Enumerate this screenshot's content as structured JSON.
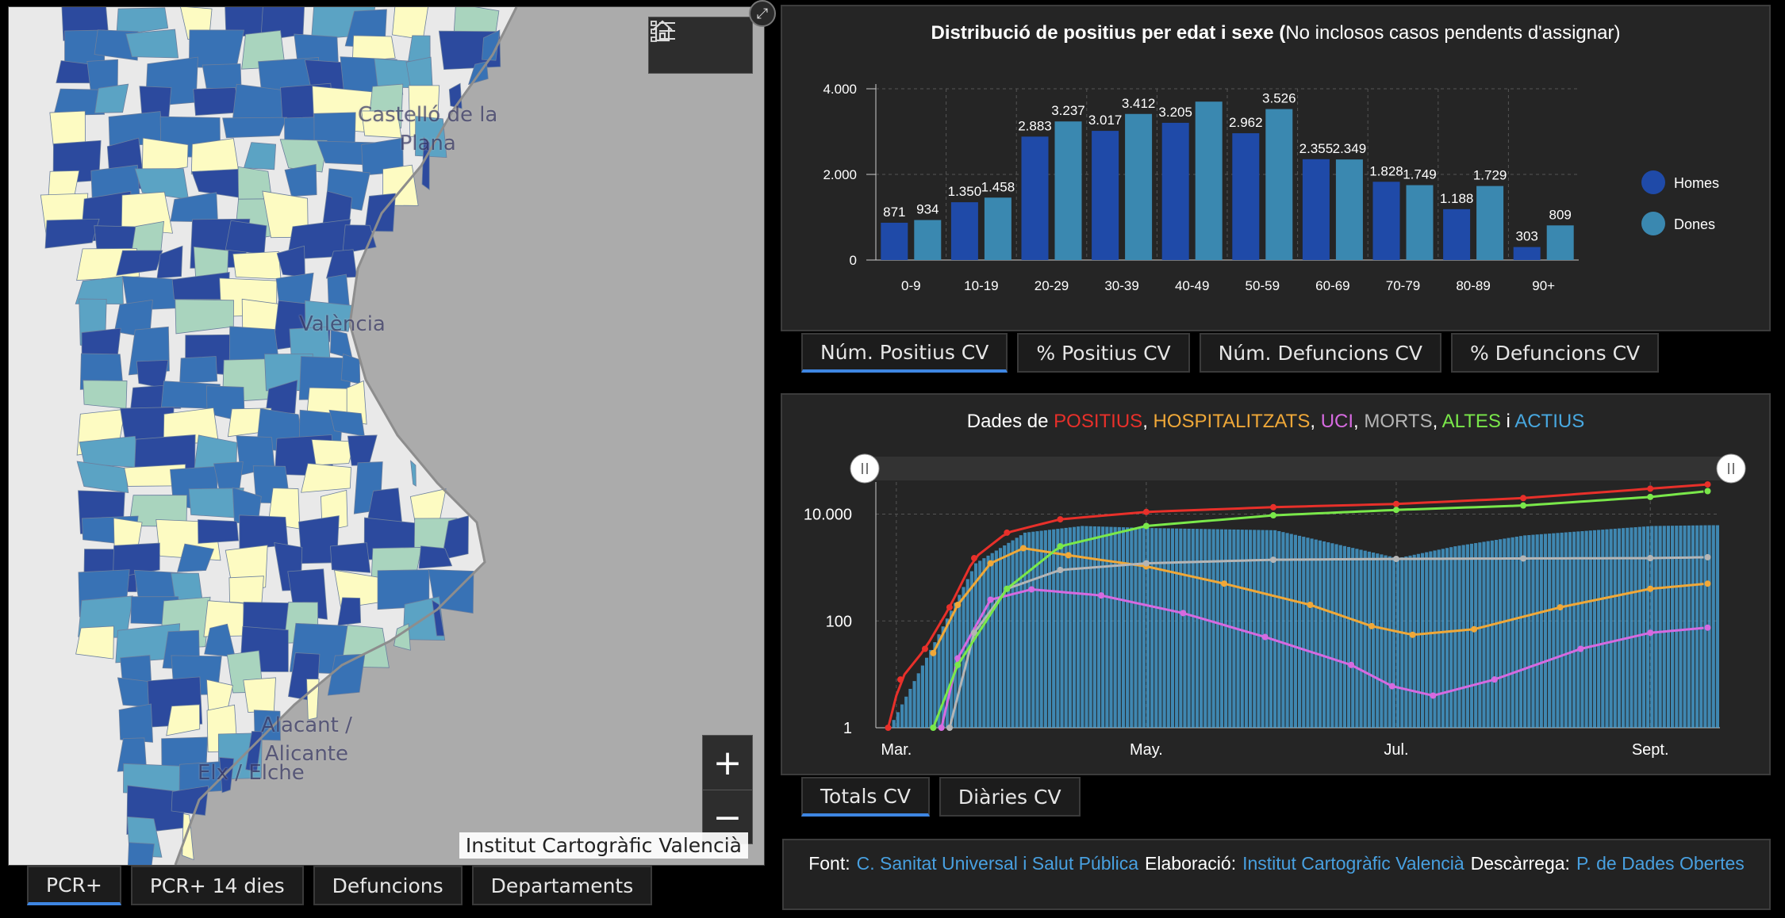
{
  "map": {
    "labels": {
      "castello_1": "Castelló de la",
      "castello_2": "Plana",
      "valencia": "València",
      "alacant_1": "Alacant /",
      "alacant_2": "Alicante",
      "elx": "Elx / Elche"
    },
    "attribution": "Institut Cartogràfic Valencià",
    "zoom_in": "+",
    "zoom_out": "−",
    "icons": [
      "home-icon",
      "legend-list-icon",
      "expand-icon"
    ],
    "colors": {
      "sea": "#ababab",
      "land": "#e9e9e9",
      "dark": "#2c4a9e",
      "mid": "#3872b5",
      "teal": "#5ba3c4",
      "light": "#a9d4be",
      "pale": "#fdfbc2"
    }
  },
  "map_tabs": [
    "PCR+",
    "PCR+ 14 dies",
    "Defuncions",
    "Departaments"
  ],
  "age_chart": {
    "title_bold": "Distribució de positius per edat i sexe (",
    "title_normal": "No inclosos casos pendents d'assignar)",
    "tabs": [
      "Núm. Positius CV",
      "% Positius CV",
      "Núm. Defuncions CV",
      "% Defuncions CV"
    ],
    "legend": [
      {
        "label": "Homes",
        "color": "#1f4aa8"
      },
      {
        "label": "Dones",
        "color": "#3a88b0"
      }
    ]
  },
  "timeline": {
    "title_prefix": "Dades de ",
    "title_parts": [
      {
        "text": "POSITIUS",
        "color": "#e8302a"
      },
      {
        "text": ", ",
        "color": "#ffffff"
      },
      {
        "text": "HOSPITALITZATS",
        "color": "#f0a838"
      },
      {
        "text": ", ",
        "color": "#ffffff"
      },
      {
        "text": "UCI",
        "color": "#d66ae0"
      },
      {
        "text": ", ",
        "color": "#ffffff"
      },
      {
        "text": "MORTS",
        "color": "#b5b5b5"
      },
      {
        "text": ", ",
        "color": "#ffffff"
      },
      {
        "text": "ALTES",
        "color": "#7ae84a"
      },
      {
        "text": " i ",
        "color": "#ffffff"
      },
      {
        "text": "ACTIUS",
        "color": "#48a8e0"
      }
    ],
    "tabs": [
      "Totals CV",
      "Diàries CV"
    ]
  },
  "footer": {
    "font_label": "Font:",
    "font_link": "C. Sanitat Universal i Salut Pública",
    "elab_label": "Elaboració:",
    "elab_link": "Institut Cartogràfic Valencià",
    "desc_label": "Descàrrega:",
    "desc_link": "P. de Dades Obertes"
  },
  "chart_data": [
    {
      "type": "bar",
      "categories": [
        "0-9",
        "10-19",
        "20-29",
        "30-39",
        "40-49",
        "50-59",
        "60-69",
        "70-79",
        "80-89",
        "90+"
      ],
      "series": [
        {
          "name": "Homes",
          "values": [
            871,
            1350,
            2883,
            3017,
            3205,
            2962,
            2355,
            1828,
            1188,
            303
          ]
        },
        {
          "name": "Dones",
          "values": [
            934,
            1458,
            3237,
            3412,
            3700,
            3526,
            2349,
            1749,
            1729,
            809
          ]
        }
      ],
      "data_labels": {
        "Homes": [
          "871",
          "1.350",
          "2.883",
          "3.017",
          "3.205",
          "2.962",
          "2.355",
          "1.828",
          "1.188",
          "303"
        ],
        "Dones": [
          "934",
          "1.458",
          "3.237",
          "3.412",
          "",
          "3.526",
          "2.349",
          "1.749",
          "1.729",
          "809"
        ]
      },
      "yticks": [
        {
          "v": 0,
          "label": "0"
        },
        {
          "v": 2000,
          "label": "2.000"
        },
        {
          "v": 4000,
          "label": "4.000"
        }
      ],
      "ylim": [
        0,
        4000
      ],
      "grid": true,
      "legend_position": "right"
    },
    {
      "type": "line",
      "scale": "log",
      "ylim": [
        1,
        40000
      ],
      "yticks": [
        {
          "v": 1,
          "label": "1"
        },
        {
          "v": 100,
          "label": "100"
        },
        {
          "v": 10000,
          "label": "10.000"
        }
      ],
      "xlim": [
        "2020-02-25",
        "2020-09-18"
      ],
      "xticks": [
        {
          "date": "2020-03-01",
          "label": "Mar."
        },
        {
          "date": "2020-05-01",
          "label": "May."
        },
        {
          "date": "2020-07-01",
          "label": "Jul."
        },
        {
          "date": "2020-09-01",
          "label": "Sept."
        }
      ],
      "grid": true,
      "series": [
        {
          "name": "POSITIUS",
          "color": "#e8302a",
          "points": [
            [
              "2020-02-28",
              1
            ],
            [
              "2020-03-02",
              8
            ],
            [
              "2020-03-08",
              30
            ],
            [
              "2020-03-14",
              180
            ],
            [
              "2020-03-20",
              1500
            ],
            [
              "2020-03-28",
              4500
            ],
            [
              "2020-04-10",
              8000
            ],
            [
              "2020-05-01",
              11000
            ],
            [
              "2020-06-01",
              13500
            ],
            [
              "2020-07-01",
              15500
            ],
            [
              "2020-08-01",
              20000
            ],
            [
              "2020-09-01",
              30000
            ],
            [
              "2020-09-15",
              36000
            ]
          ]
        },
        {
          "name": "HOSPITALITZATS",
          "color": "#f0a838",
          "points": [
            [
              "2020-03-10",
              25
            ],
            [
              "2020-03-16",
              200
            ],
            [
              "2020-03-24",
              1200
            ],
            [
              "2020-04-01",
              2300
            ],
            [
              "2020-04-12",
              1700
            ],
            [
              "2020-05-01",
              1050
            ],
            [
              "2020-05-20",
              500
            ],
            [
              "2020-06-10",
              200
            ],
            [
              "2020-06-25",
              80
            ],
            [
              "2020-07-05",
              55
            ],
            [
              "2020-07-20",
              70
            ],
            [
              "2020-08-10",
              180
            ],
            [
              "2020-09-01",
              400
            ],
            [
              "2020-09-15",
              500
            ]
          ]
        },
        {
          "name": "UCI",
          "color": "#d66ae0",
          "points": [
            [
              "2020-03-12",
              1
            ],
            [
              "2020-03-16",
              20
            ],
            [
              "2020-03-24",
              250
            ],
            [
              "2020-04-03",
              390
            ],
            [
              "2020-04-20",
              300
            ],
            [
              "2020-05-10",
              140
            ],
            [
              "2020-05-30",
              50
            ],
            [
              "2020-06-20",
              15
            ],
            [
              "2020-06-30",
              6
            ],
            [
              "2020-07-10",
              4
            ],
            [
              "2020-07-25",
              8
            ],
            [
              "2020-08-15",
              30
            ],
            [
              "2020-09-01",
              60
            ],
            [
              "2020-09-15",
              75
            ]
          ]
        },
        {
          "name": "MORTS",
          "color": "#b5b5b5",
          "points": [
            [
              "2020-03-14",
              1
            ],
            [
              "2020-03-20",
              60
            ],
            [
              "2020-03-28",
              400
            ],
            [
              "2020-04-10",
              900
            ],
            [
              "2020-05-01",
              1200
            ],
            [
              "2020-06-01",
              1400
            ],
            [
              "2020-07-01",
              1450
            ],
            [
              "2020-08-01",
              1480
            ],
            [
              "2020-09-01",
              1500
            ],
            [
              "2020-09-15",
              1560
            ]
          ]
        },
        {
          "name": "ALTES",
          "color": "#7ae84a",
          "points": [
            [
              "2020-03-10",
              1
            ],
            [
              "2020-03-16",
              15
            ],
            [
              "2020-03-28",
              400
            ],
            [
              "2020-04-10",
              2500
            ],
            [
              "2020-05-01",
              6000
            ],
            [
              "2020-06-01",
              9500
            ],
            [
              "2020-07-01",
              12000
            ],
            [
              "2020-08-01",
              14500
            ],
            [
              "2020-09-01",
              21000
            ],
            [
              "2020-09-15",
              27000
            ]
          ]
        },
        {
          "name": "ACTIUS",
          "color": "#48a8e0",
          "points": [
            [
              "2020-02-28",
              1
            ],
            [
              "2020-03-10",
              40
            ],
            [
              "2020-03-20",
              1200
            ],
            [
              "2020-04-01",
              4500
            ],
            [
              "2020-04-15",
              6000
            ],
            [
              "2020-05-01",
              5500
            ],
            [
              "2020-06-01",
              5000
            ],
            [
              "2020-07-01",
              1500
            ],
            [
              "2020-07-15",
              2500
            ],
            [
              "2020-08-01",
              4000
            ],
            [
              "2020-09-01",
              6000
            ],
            [
              "2020-09-15",
              6200
            ]
          ]
        }
      ]
    }
  ]
}
